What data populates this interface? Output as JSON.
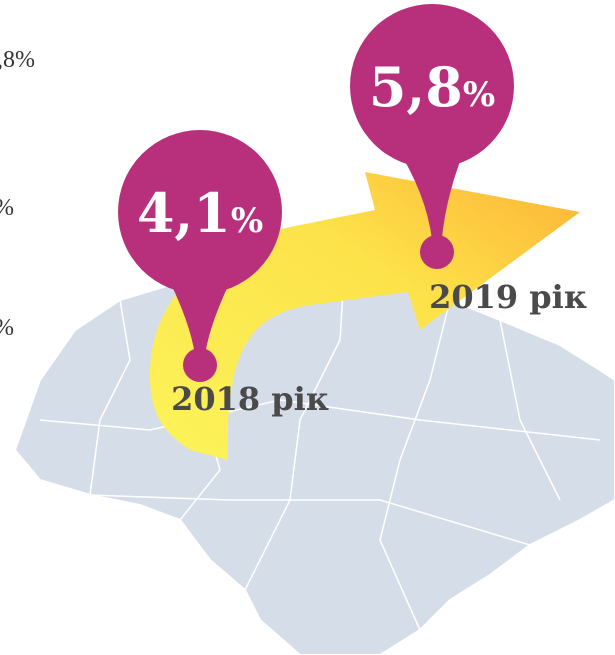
{
  "side_labels": [
    ",8%",
    "%",
    "%"
  ],
  "markers": [
    {
      "value": "4,1",
      "unit": "%",
      "year": "2018 рік"
    },
    {
      "value": "5,8",
      "unit": "%",
      "year": "2019 рік"
    }
  ]
}
